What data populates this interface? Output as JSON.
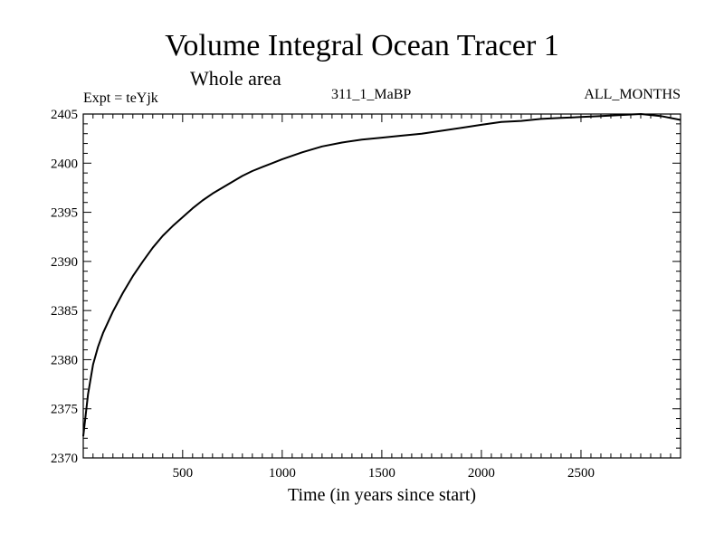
{
  "chart_data": {
    "type": "line",
    "title": "Volume Integral Ocean Tracer 1",
    "subtitle": "Whole area",
    "annotations": {
      "expt": "Expt = teYjk",
      "run": "311_1_MaBP",
      "months": "ALL_MONTHS"
    },
    "xlabel": "Time (in years since start)",
    "ylabel": "",
    "xlim": [
      1,
      3000
    ],
    "ylim": [
      2370,
      2405
    ],
    "xticks": [
      500,
      1000,
      1500,
      2000,
      2500
    ],
    "yticks": [
      2370,
      2375,
      2380,
      2385,
      2390,
      2395,
      2400,
      2405
    ],
    "grid": false,
    "series": [
      {
        "color": "#000000",
        "x": [
          1,
          25,
          50,
          75,
          100,
          150,
          200,
          250,
          300,
          350,
          400,
          450,
          500,
          550,
          600,
          650,
          700,
          750,
          800,
          850,
          900,
          950,
          1000,
          1100,
          1200,
          1300,
          1400,
          1500,
          1600,
          1700,
          1800,
          1900,
          2000,
          2100,
          2200,
          2300,
          2400,
          2500,
          2600,
          2700,
          2800,
          2900,
          3000
        ],
        "y": [
          2372.2,
          2376.5,
          2379.5,
          2381.3,
          2382.7,
          2384.9,
          2386.8,
          2388.5,
          2390.0,
          2391.4,
          2392.6,
          2393.6,
          2394.5,
          2395.4,
          2396.2,
          2396.9,
          2397.5,
          2398.1,
          2398.7,
          2399.2,
          2399.6,
          2400.0,
          2400.4,
          2401.1,
          2401.7,
          2402.1,
          2402.4,
          2402.6,
          2402.8,
          2403.0,
          2403.3,
          2403.6,
          2403.9,
          2404.2,
          2404.3,
          2404.5,
          2404.6,
          2404.7,
          2404.8,
          2404.9,
          2405.0,
          2404.8,
          2404.4
        ]
      }
    ]
  }
}
